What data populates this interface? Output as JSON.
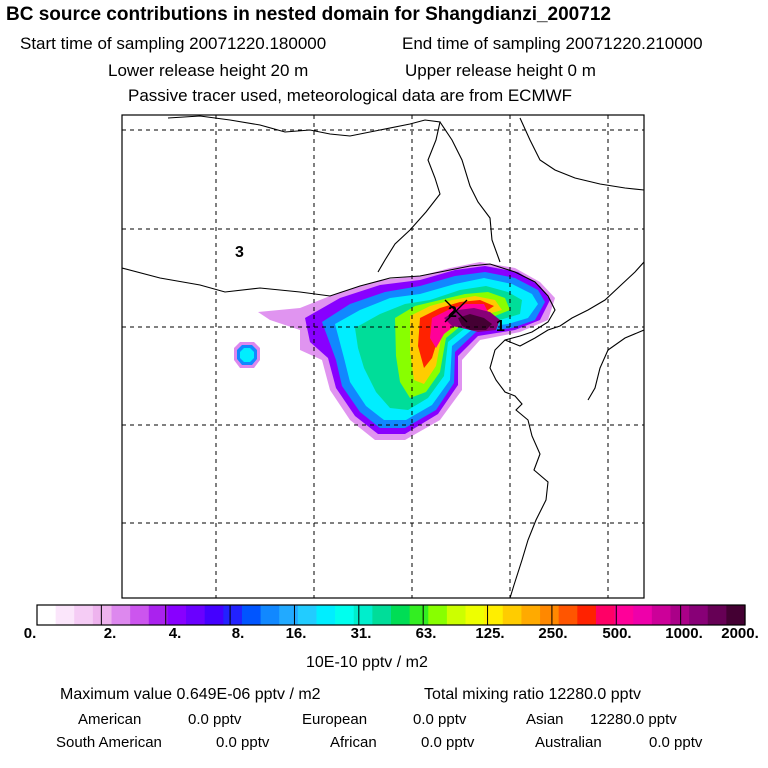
{
  "title": "BC  source contributions in nested domain for Shangdianzi_200712",
  "start_label": "Start time of sampling 20071220.180000",
  "end_label": "End time of sampling 20071220.210000",
  "lower_label": "Lower release height   20 m",
  "upper_label": "Upper release height    0 m",
  "passive_label": "Passive tracer used, meteorological data are from ECMWF",
  "map": {
    "markers": [
      "1",
      "2",
      "3"
    ]
  },
  "colorbar": {
    "ticks": [
      "0.",
      "2.",
      "4.",
      "8.",
      "16.",
      "31.",
      "63.",
      "125.",
      "250.",
      "500.",
      "1000.",
      "2000."
    ],
    "units": "10E-10 pptv / m2",
    "colors": [
      "#ffffff",
      "#fbe6fb",
      "#f5ccf5",
      "#eeb3ee",
      "#dd88ee",
      "#cc55ee",
      "#aa22ee",
      "#8800ff",
      "#6a00ff",
      "#4400ff",
      "#2222ff",
      "#0055ff",
      "#1188ff",
      "#22aaff",
      "#22ccff",
      "#00eeff",
      "#00ffee",
      "#00eecc",
      "#00dd99",
      "#00dd55",
      "#33ee22",
      "#88ff00",
      "#ccff00",
      "#eeff00",
      "#ffee00",
      "#ffcc00",
      "#ffaa00",
      "#ff8800",
      "#ff5500",
      "#ff2200",
      "#ff0066",
      "#ff0099",
      "#ee00aa",
      "#cc0099",
      "#aa0088",
      "#880077",
      "#660055",
      "#440033"
    ]
  },
  "summary": {
    "max_value": "Maximum value  0.649E-06 pptv / m2",
    "total": "Total mixing ratio    12280.0 pptv"
  },
  "regions": [
    {
      "name": "American",
      "value": "0.0 pptv"
    },
    {
      "name": "European",
      "value": "0.0 pptv"
    },
    {
      "name": "Asian",
      "value": "12280.0 pptv"
    },
    {
      "name": "South American",
      "value": "0.0 pptv"
    },
    {
      "name": "African",
      "value": "0.0 pptv"
    },
    {
      "name": "Australian",
      "value": "0.0 pptv"
    }
  ]
}
